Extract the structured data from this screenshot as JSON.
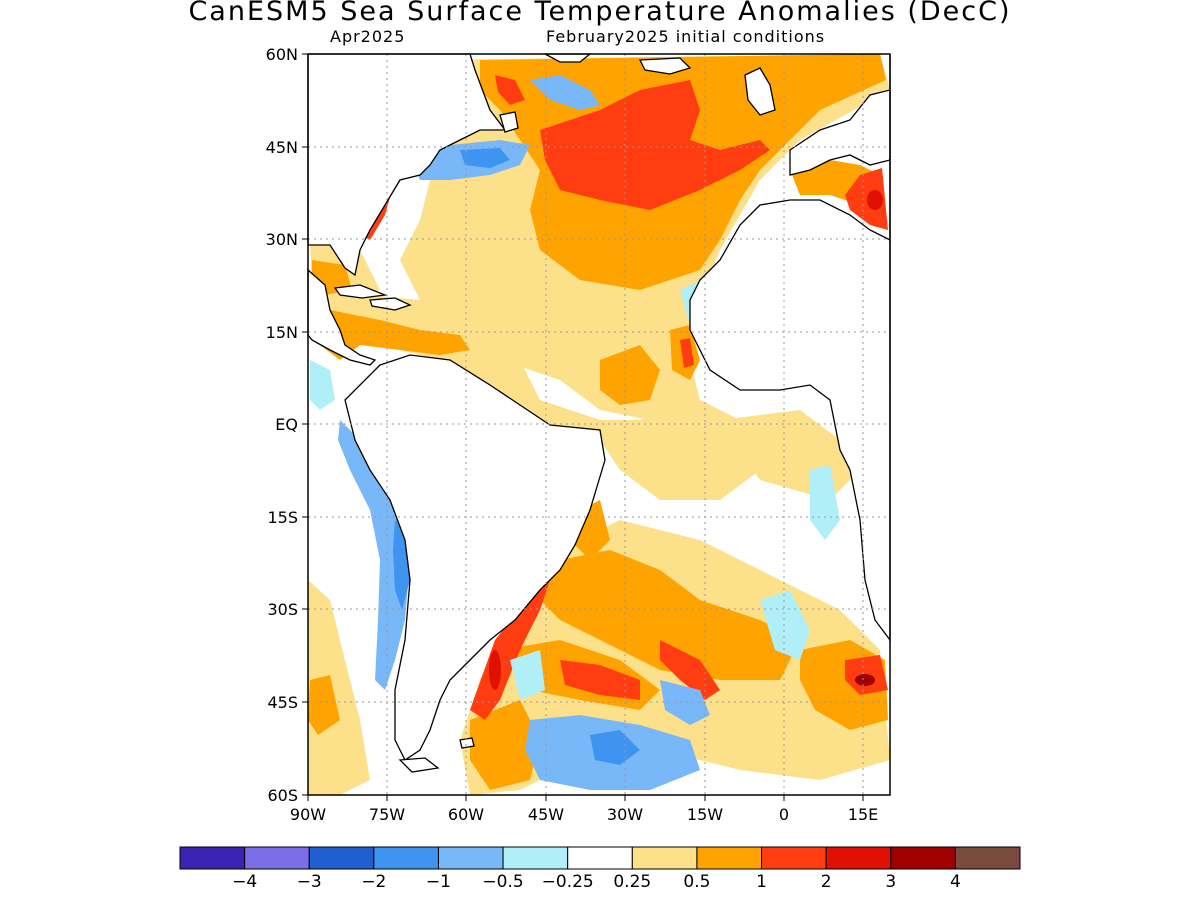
{
  "title": "CanESM5 Sea Surface Temperature Anomalies (DecC)",
  "subtitle_left": "Apr2025",
  "subtitle_right": "February2025 initial conditions",
  "map": {
    "projection": "lat-lon",
    "lon_range": [
      -90,
      20
    ],
    "lat_range": [
      -60,
      60
    ],
    "grid": "dotted",
    "y_ticks": [
      "60N",
      "45N",
      "30N",
      "15N",
      "EQ",
      "15S",
      "30S",
      "45S",
      "60S"
    ],
    "x_ticks": [
      "90W",
      "75W",
      "60W",
      "45W",
      "30W",
      "15W",
      "0",
      "15E"
    ]
  },
  "colorbar": {
    "colors": [
      "#3b24b4",
      "#7b6ee8",
      "#1f5fd0",
      "#3f94f0",
      "#79b8f8",
      "#b0eef8",
      "#ffffff",
      "#fde08a",
      "#ffa300",
      "#ff3d10",
      "#e01004",
      "#a00000",
      "#7a4a3e"
    ],
    "labels": [
      "−4",
      "−3",
      "−2",
      "−1",
      "−0.5",
      "−0.25",
      "0.25",
      "0.5",
      "1",
      "2",
      "3",
      "4"
    ]
  },
  "colors": {
    "land": "#ffffff",
    "coast": "#000000",
    "warm_light": "#fde08a",
    "warm": "#ffa300",
    "warm_strong": "#ff3d10",
    "hot": "#e01004",
    "cool_light": "#b0eef8",
    "cool": "#79b8f8",
    "cool_strong": "#3f94f0",
    "cold": "#1f5fd0",
    "cold_strong": "#3b24b4"
  }
}
